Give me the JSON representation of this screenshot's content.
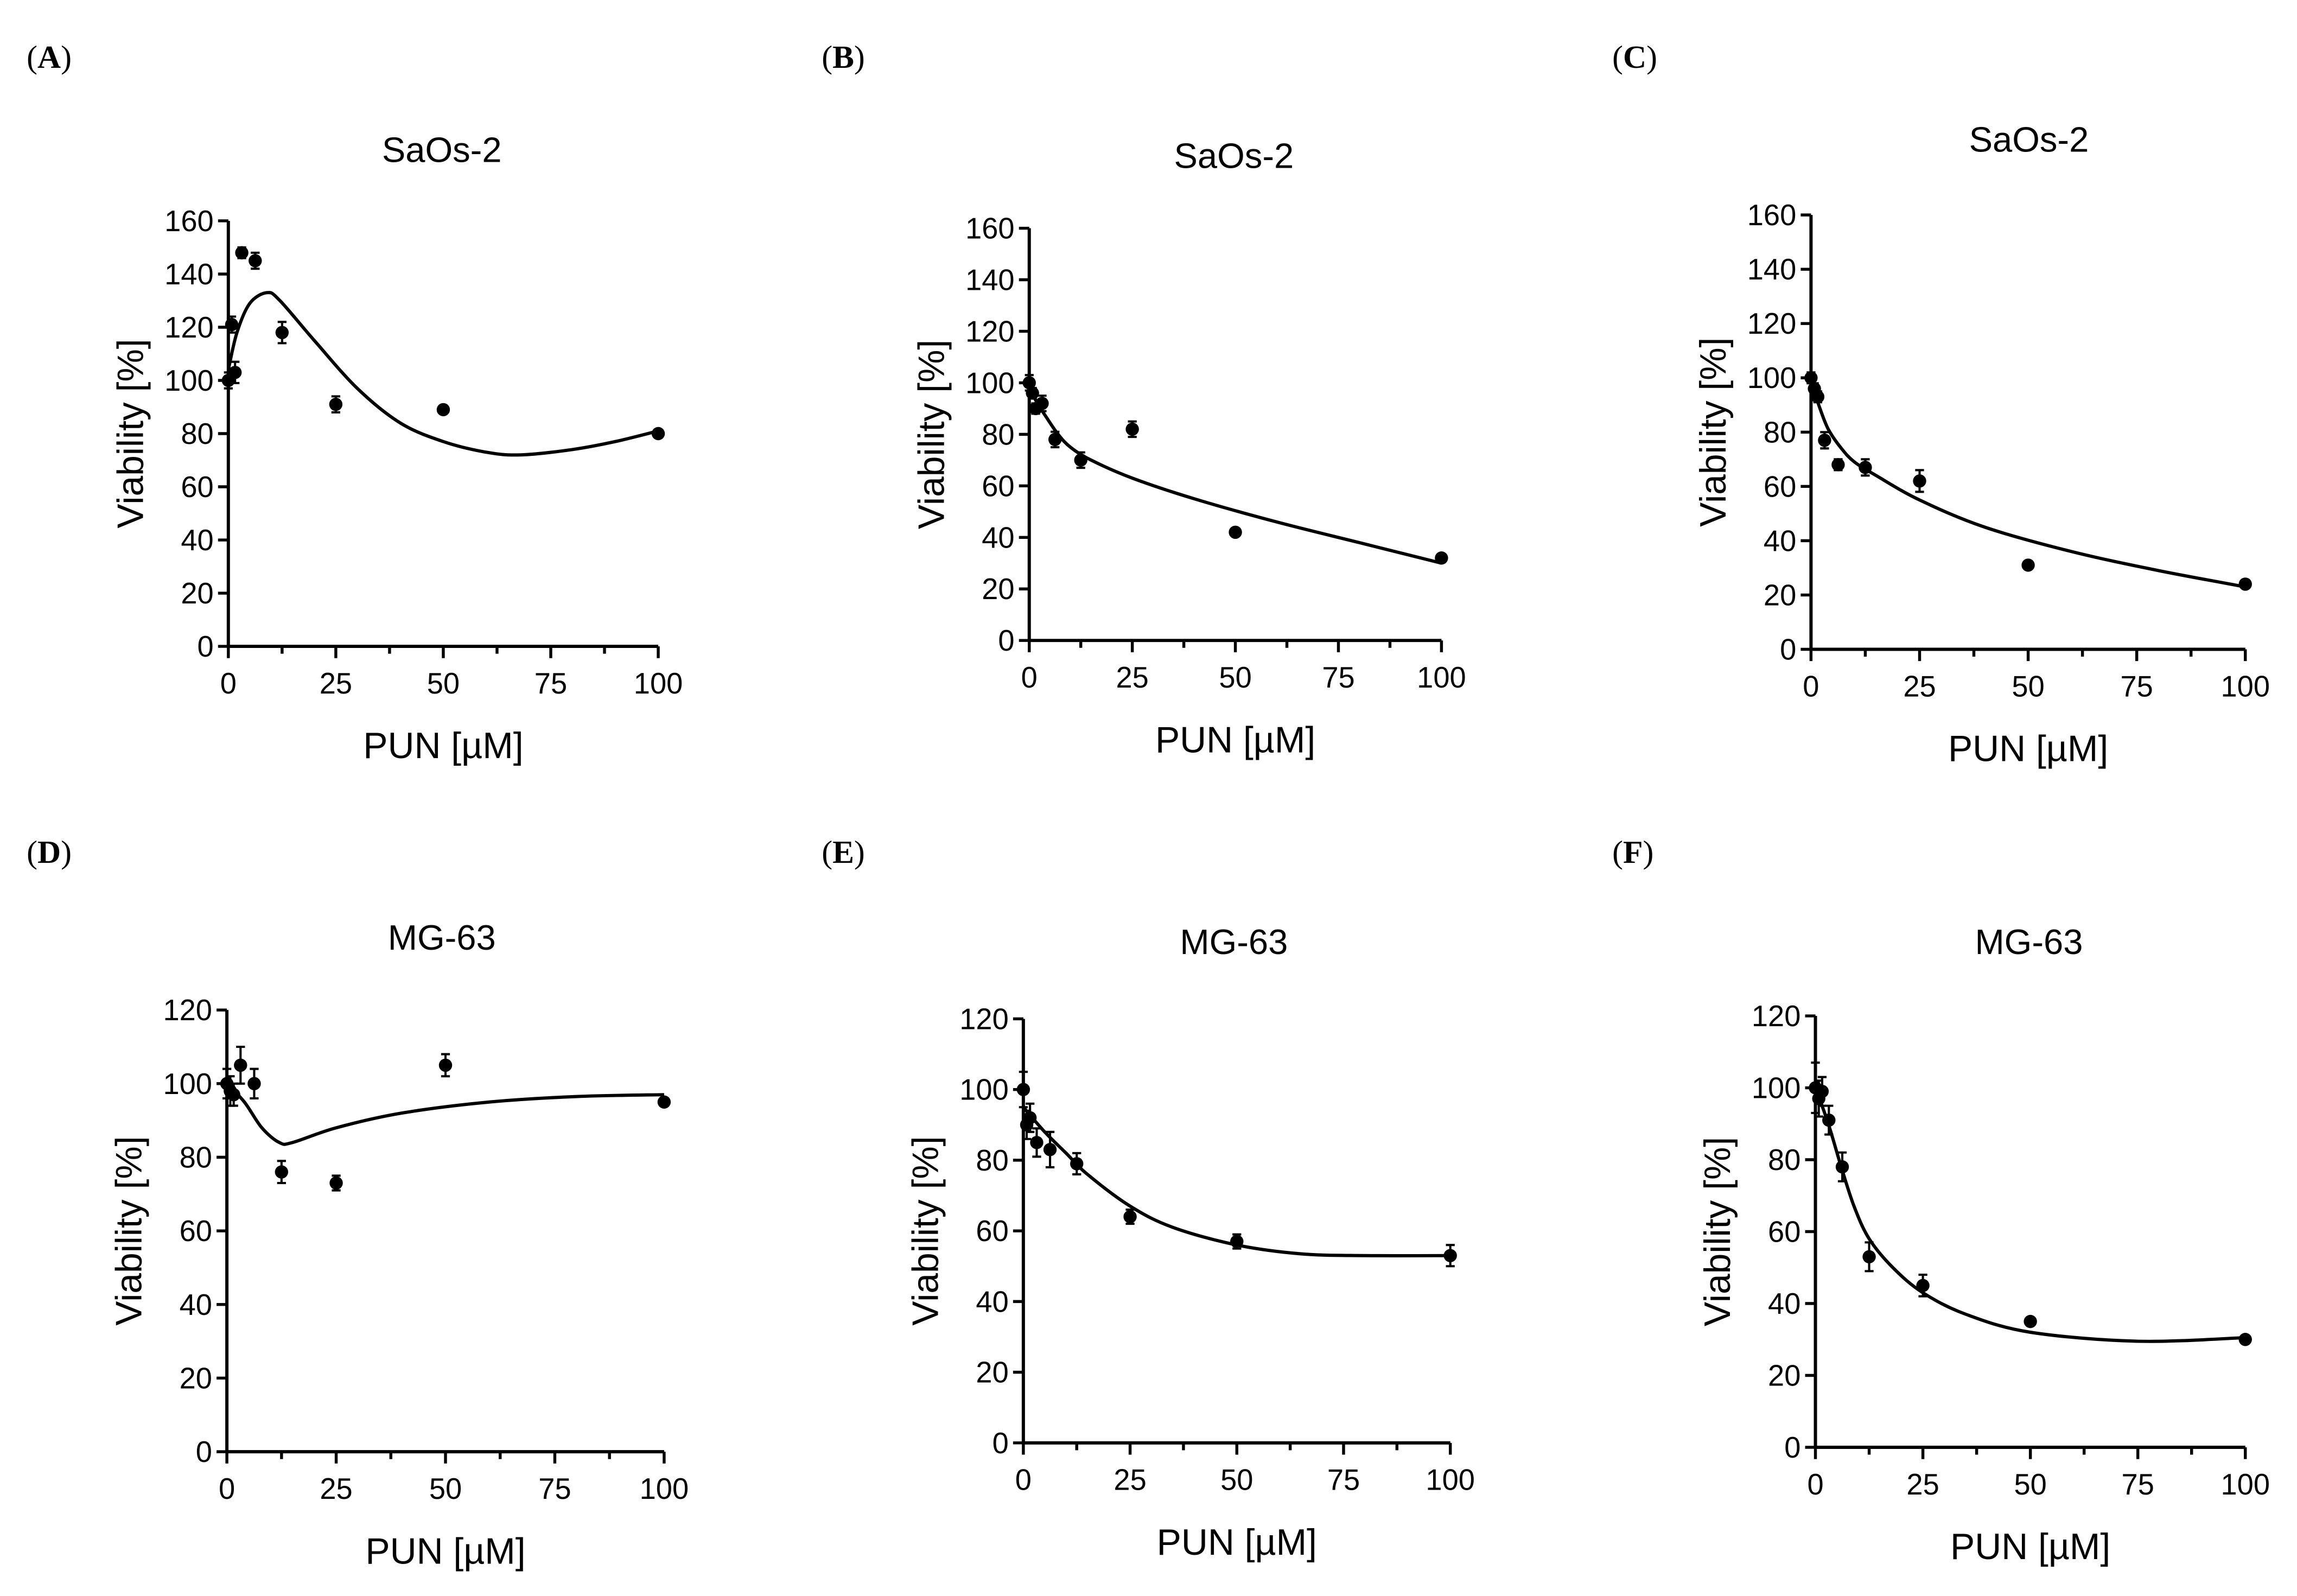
{
  "chart_data": [
    {
      "panel": "A",
      "type": "scatter",
      "title": "SaOs-2",
      "xlabel": "PUN [µM]",
      "ylabel": "Viability [%]",
      "xlim": [
        0,
        100
      ],
      "ylim": [
        0,
        160
      ],
      "yticks": [
        0,
        20,
        40,
        60,
        80,
        100,
        120,
        140,
        160
      ],
      "xticks": [
        0,
        25,
        50,
        75,
        100
      ],
      "x": [
        0,
        0.78,
        1.56,
        3.125,
        6.25,
        12.5,
        25,
        50,
        100
      ],
      "y": [
        100,
        121,
        103,
        148,
        145,
        118,
        91,
        89,
        80
      ],
      "err": [
        3,
        3,
        4,
        2,
        3,
        4,
        3,
        1,
        1
      ],
      "fit": [
        [
          0,
          104
        ],
        [
          2,
          118
        ],
        [
          5,
          129
        ],
        [
          9,
          133
        ],
        [
          12,
          130
        ],
        [
          20,
          115
        ],
        [
          30,
          97
        ],
        [
          40,
          84
        ],
        [
          50,
          77
        ],
        [
          60,
          73
        ],
        [
          68,
          72
        ],
        [
          80,
          74
        ],
        [
          90,
          77
        ],
        [
          100,
          81
        ]
      ]
    },
    {
      "panel": "B",
      "type": "scatter",
      "title": "SaOs-2",
      "xlabel": "PUN [µM]",
      "ylabel": "Viability [%]",
      "xlim": [
        0,
        100
      ],
      "ylim": [
        0,
        160
      ],
      "yticks": [
        0,
        20,
        40,
        60,
        80,
        100,
        120,
        140,
        160
      ],
      "xticks": [
        0,
        25,
        50,
        75,
        100
      ],
      "x": [
        0,
        0.78,
        1.56,
        3.125,
        6.25,
        12.5,
        25,
        50,
        100
      ],
      "y": [
        100,
        96,
        90,
        92,
        78,
        70,
        82,
        42,
        32
      ],
      "err": [
        3,
        2,
        2,
        3,
        3,
        3,
        3,
        1,
        1
      ],
      "fit": [
        [
          0,
          98
        ],
        [
          2,
          92
        ],
        [
          4,
          87
        ],
        [
          7,
          80
        ],
        [
          10,
          75
        ],
        [
          15,
          70
        ],
        [
          25,
          63
        ],
        [
          40,
          55
        ],
        [
          60,
          46
        ],
        [
          80,
          38
        ],
        [
          100,
          30
        ]
      ]
    },
    {
      "panel": "C",
      "type": "scatter",
      "title": "SaOs-2",
      "xlabel": "PUN [µM]",
      "ylabel": "Viability [%]",
      "xlim": [
        0,
        100
      ],
      "ylim": [
        0,
        160
      ],
      "yticks": [
        0,
        20,
        40,
        60,
        80,
        100,
        120,
        140,
        160
      ],
      "xticks": [
        0,
        25,
        50,
        75,
        100
      ],
      "x": [
        0,
        0.78,
        1.56,
        3.125,
        6.25,
        12.5,
        25,
        50,
        100
      ],
      "y": [
        100,
        96,
        93,
        77,
        68,
        67,
        62,
        31,
        24
      ],
      "err": [
        2,
        2,
        2,
        3,
        2,
        3,
        4,
        1,
        1
      ],
      "fit": [
        [
          0,
          99
        ],
        [
          1,
          94
        ],
        [
          2,
          89
        ],
        [
          4,
          81
        ],
        [
          7,
          74
        ],
        [
          10,
          69
        ],
        [
          15,
          64
        ],
        [
          25,
          55
        ],
        [
          40,
          45
        ],
        [
          60,
          36
        ],
        [
          80,
          29
        ],
        [
          100,
          23
        ]
      ]
    },
    {
      "panel": "D",
      "type": "scatter",
      "title": "MG-63",
      "xlabel": "PUN [µM]",
      "ylabel": "Viability [%]",
      "xlim": [
        0,
        100
      ],
      "ylim": [
        0,
        120
      ],
      "yticks": [
        0,
        20,
        40,
        60,
        80,
        100,
        120
      ],
      "xticks": [
        0,
        25,
        50,
        75,
        100
      ],
      "x": [
        0,
        0.78,
        1.56,
        3.125,
        6.25,
        12.5,
        25,
        50,
        100
      ],
      "y": [
        100,
        98,
        97,
        105,
        100,
        76,
        73,
        105,
        95
      ],
      "err": [
        4,
        4,
        3,
        5,
        4,
        3,
        2,
        3,
        1
      ],
      "fit": [
        [
          0,
          100
        ],
        [
          4,
          95
        ],
        [
          8,
          88
        ],
        [
          12,
          84
        ],
        [
          15,
          84
        ],
        [
          25,
          88
        ],
        [
          40,
          92
        ],
        [
          60,
          95
        ],
        [
          80,
          96.5
        ],
        [
          100,
          97
        ]
      ]
    },
    {
      "panel": "E",
      "type": "scatter",
      "title": "MG-63",
      "xlabel": "PUN [µM]",
      "ylabel": "Viability [%]",
      "xlim": [
        0,
        100
      ],
      "ylim": [
        0,
        120
      ],
      "yticks": [
        0,
        20,
        40,
        60,
        80,
        100,
        120
      ],
      "xticks": [
        0,
        25,
        50,
        75,
        100
      ],
      "x": [
        0,
        0.78,
        1.56,
        3.125,
        6.25,
        12.5,
        25,
        50,
        100
      ],
      "y": [
        100,
        90,
        92,
        85,
        83,
        79,
        64,
        57,
        53
      ],
      "err": [
        5,
        4,
        4,
        4,
        5,
        3,
        2,
        2,
        3
      ],
      "fit": [
        [
          0,
          95
        ],
        [
          5,
          88
        ],
        [
          10,
          82
        ],
        [
          15,
          76
        ],
        [
          25,
          67
        ],
        [
          35,
          61
        ],
        [
          50,
          56
        ],
        [
          65,
          53.5
        ],
        [
          80,
          53
        ],
        [
          100,
          53
        ]
      ]
    },
    {
      "panel": "F",
      "type": "scatter",
      "title": "MG-63",
      "xlabel": "PUN [µM]",
      "ylabel": "Viability [%]",
      "xlim": [
        0,
        100
      ],
      "ylim": [
        0,
        120
      ],
      "yticks": [
        0,
        20,
        40,
        60,
        80,
        100,
        120
      ],
      "xticks": [
        0,
        25,
        50,
        75,
        100
      ],
      "x": [
        0,
        0.78,
        1.56,
        3.125,
        6.25,
        12.5,
        25,
        50,
        100
      ],
      "y": [
        100,
        97,
        99,
        91,
        78,
        53,
        45,
        35,
        30
      ],
      "err": [
        7,
        5,
        4,
        4,
        4,
        4,
        3,
        1,
        1
      ],
      "fit": [
        [
          0,
          100
        ],
        [
          3,
          90
        ],
        [
          6,
          78
        ],
        [
          9,
          67
        ],
        [
          12.5,
          58
        ],
        [
          18,
          50
        ],
        [
          25,
          43
        ],
        [
          35,
          37
        ],
        [
          50,
          32
        ],
        [
          75,
          29.5
        ],
        [
          100,
          30.5
        ]
      ]
    }
  ]
}
